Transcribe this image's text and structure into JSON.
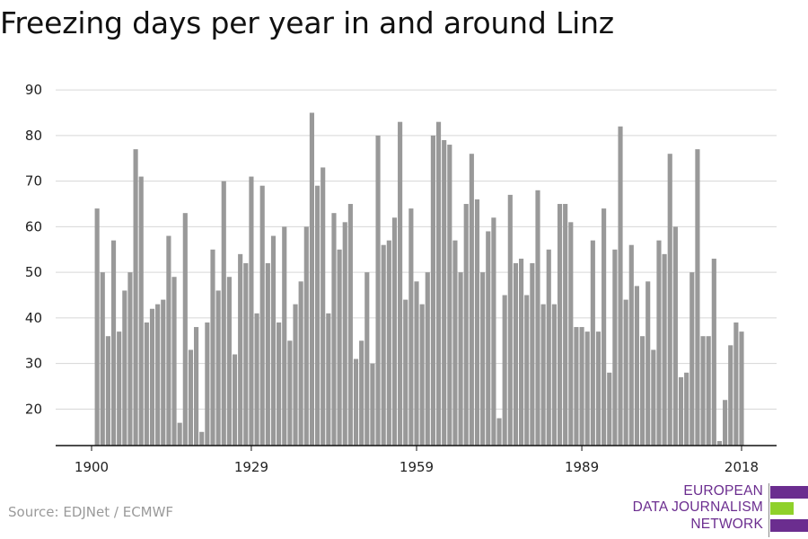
{
  "title": "Freezing days per year in and around Linz",
  "source": "Source: EDJNet / ECMWF",
  "logo": {
    "lines": [
      "EUROPEAN",
      "DATA JOURNALISM",
      "NETWORK"
    ],
    "colors": [
      "#6b2d8f",
      "#8fd12a",
      "#6b2d8f"
    ]
  },
  "chart_data": {
    "type": "bar",
    "title": "Freezing days per year in and around Linz",
    "xlabel": "",
    "ylabel": "",
    "x_start": 1900,
    "x_end": 2018,
    "x_ticks": [
      1900,
      1929,
      1959,
      1989,
      2018
    ],
    "y_ticks": [
      20,
      30,
      40,
      50,
      60,
      70,
      80,
      90
    ],
    "ylim": [
      12,
      92
    ],
    "grid": true,
    "bar_color": "#999999",
    "values": [
      12,
      64,
      50,
      36,
      57,
      37,
      46,
      50,
      77,
      71,
      39,
      42,
      43,
      44,
      58,
      49,
      17,
      63,
      33,
      38,
      15,
      39,
      55,
      46,
      70,
      49,
      32,
      54,
      52,
      71,
      41,
      69,
      52,
      58,
      39,
      60,
      35,
      43,
      48,
      60,
      85,
      69,
      73,
      41,
      63,
      55,
      61,
      65,
      31,
      35,
      50,
      30,
      80,
      56,
      57,
      62,
      83,
      44,
      64,
      48,
      43,
      50,
      80,
      83,
      79,
      78,
      57,
      50,
      65,
      76,
      66,
      50,
      59,
      62,
      18,
      45,
      67,
      52,
      53,
      45,
      52,
      68,
      43,
      55,
      43,
      65,
      65,
      61,
      38,
      38,
      37,
      57,
      37,
      64,
      28,
      55,
      82,
      44,
      56,
      47,
      36,
      48,
      33,
      57,
      54,
      76,
      60,
      27,
      28,
      50,
      77,
      36,
      36,
      53,
      13,
      22,
      34,
      39,
      37
    ]
  }
}
